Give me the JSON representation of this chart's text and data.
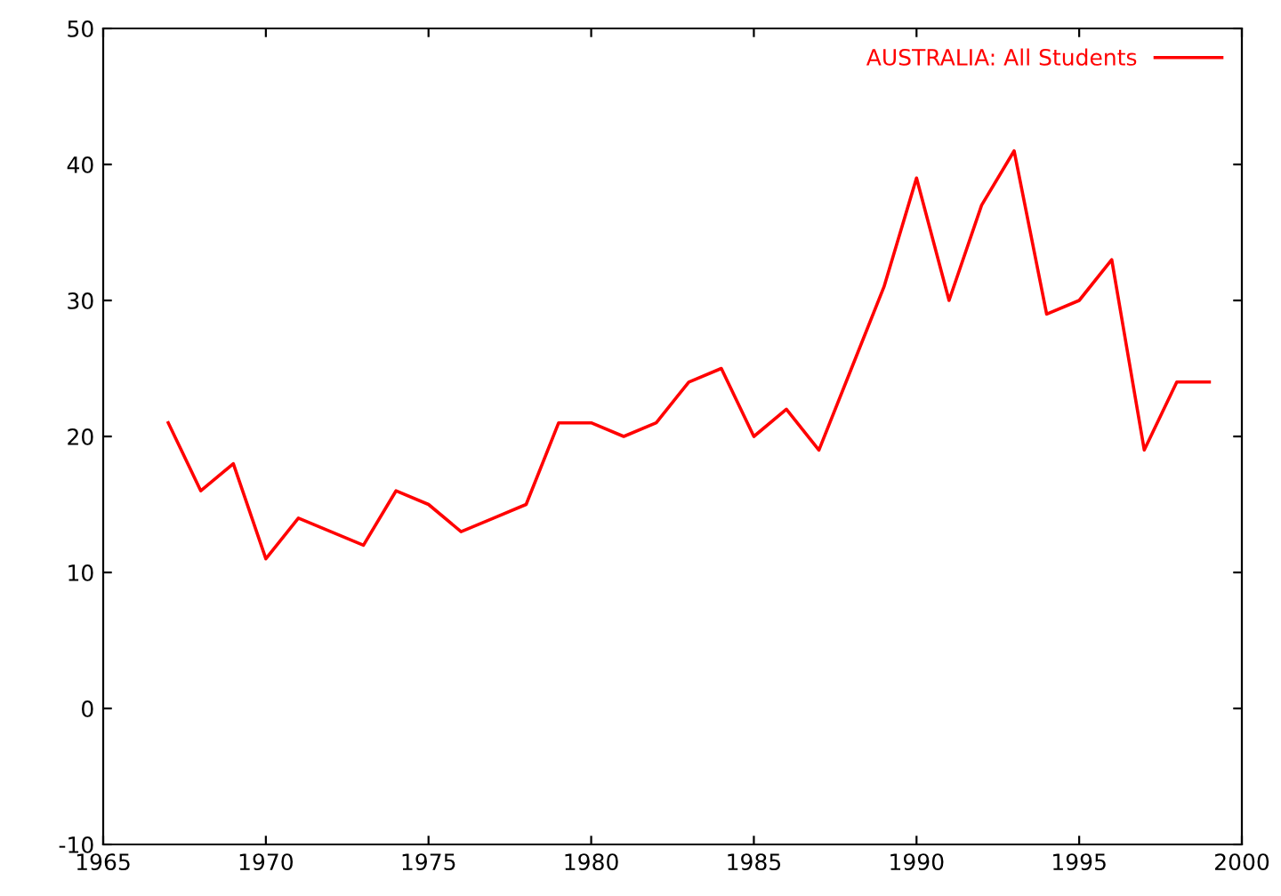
{
  "chart_data": {
    "type": "line",
    "x": [
      1967,
      1968,
      1969,
      1970,
      1971,
      1972,
      1973,
      1974,
      1975,
      1976,
      1977,
      1978,
      1979,
      1980,
      1981,
      1982,
      1983,
      1984,
      1985,
      1986,
      1987,
      1988,
      1989,
      1990,
      1991,
      1992,
      1993,
      1994,
      1995,
      1996,
      1997,
      1998,
      1999
    ],
    "series": [
      {
        "name": "AUSTRALIA: All Students",
        "color": "#ff0000",
        "values": [
          21,
          16,
          18,
          11,
          14,
          13,
          12,
          16,
          15,
          13,
          14,
          15,
          21,
          21,
          20,
          21,
          24,
          25,
          20,
          22,
          19,
          25,
          31,
          39,
          30,
          37,
          41,
          29,
          30,
          33,
          19,
          24,
          24
        ]
      }
    ],
    "xlim": [
      1965,
      2000
    ],
    "xticks": [
      1965,
      1970,
      1975,
      1980,
      1985,
      1990,
      1995,
      2000
    ],
    "ylim": [
      -10,
      50
    ],
    "yticks": [
      -10,
      0,
      10,
      20,
      30,
      40,
      50
    ],
    "grid": false,
    "legend": "top right",
    "marker": "none",
    "line_style": "solid"
  }
}
